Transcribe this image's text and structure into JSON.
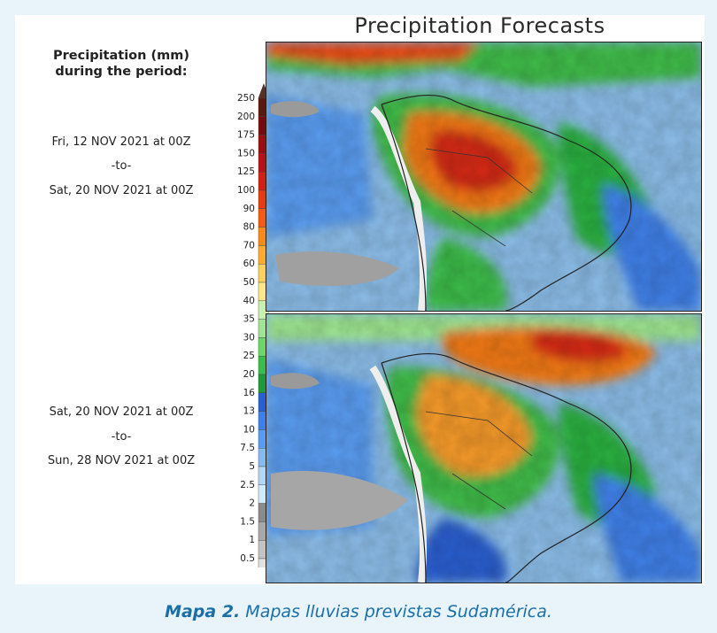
{
  "title": "Precipitation Forecasts",
  "legend": {
    "heading_line1": "Precipitation (mm)",
    "heading_line2": "during the period:",
    "levels": [
      "250",
      "200",
      "175",
      "150",
      "125",
      "100",
      "90",
      "80",
      "70",
      "60",
      "50",
      "40",
      "35",
      "30",
      "25",
      "20",
      "16",
      "13",
      "10",
      "7.5",
      "5",
      "2.5",
      "2",
      "1.5",
      "1",
      "0.5"
    ],
    "colors": [
      "#5a1a0a",
      "#7a0a0a",
      "#9a0e0e",
      "#b81212",
      "#d42012",
      "#ea3a10",
      "#f55a10",
      "#f98a18",
      "#fbac30",
      "#fdd060",
      "#fde68a",
      "#c8f0b0",
      "#9ee690",
      "#6cd66a",
      "#3cbc48",
      "#1e9a36",
      "#2a5fd0",
      "#3f80e8",
      "#5a9cf0",
      "#86bbf2",
      "#b4d7f5",
      "#d2ebfb",
      "#8a8a8a",
      "#a8a8a8",
      "#c4c4c4",
      "#e2e2e2"
    ]
  },
  "periods": [
    {
      "from": "Fri, 12 NOV 2021 at 00Z",
      "sep": "-to-",
      "to": "Sat, 20 NOV 2021 at 00Z"
    },
    {
      "from": "Sat, 20 NOV 2021 at 00Z",
      "sep": "-to-",
      "to": "Sun, 28 NOV 2021 at 00Z"
    }
  ],
  "caption": {
    "label": "Mapa 2.",
    "text": " Mapas lluvias previstas Sudamérica."
  }
}
